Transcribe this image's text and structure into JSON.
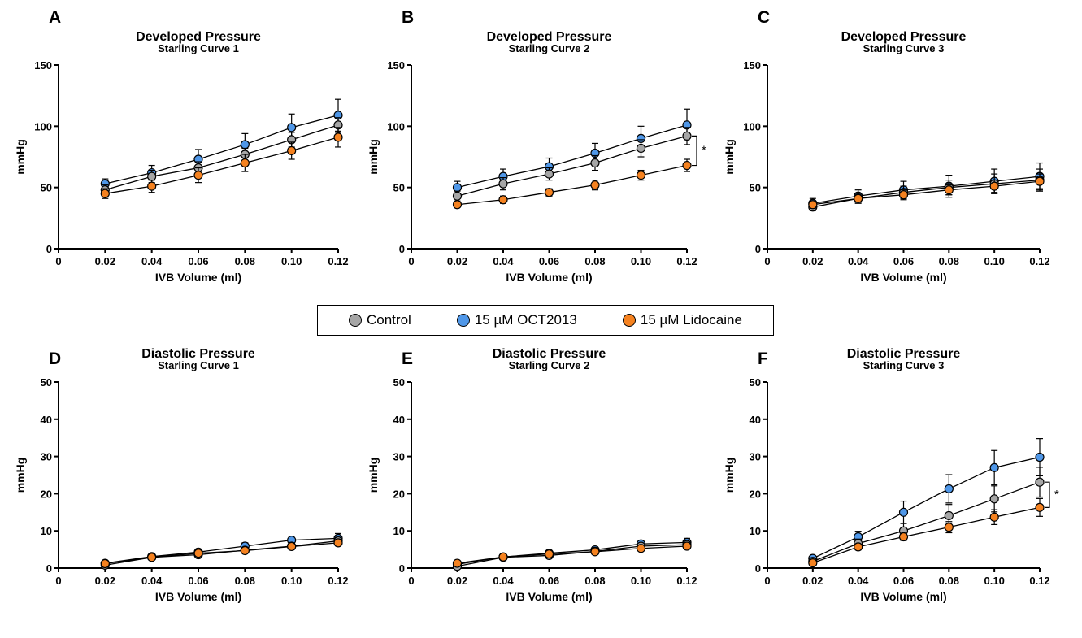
{
  "legend": {
    "series": [
      {
        "name": "Control",
        "color": "#a6a6a6"
      },
      {
        "name": "15 µM OCT2013",
        "color": "#4f97e8"
      },
      {
        "name": "15 µM Lidocaine",
        "color": "#f58220"
      }
    ]
  },
  "chart_data": [
    {
      "panel": "A",
      "type": "line",
      "title": "Developed Pressure",
      "subtitle": "Starling Curve 1",
      "xlabel": "IVB Volume (ml)",
      "ylabel": "mmHg",
      "xlim": [
        0,
        0.12
      ],
      "ylim": [
        0,
        150
      ],
      "xticks": [
        "0",
        "0.02",
        "0.04",
        "0.06",
        "0.08",
        "0.10",
        "0.12"
      ],
      "yticks": [
        "0",
        "50",
        "100",
        "150"
      ],
      "x": [
        0.02,
        0.04,
        0.06,
        0.08,
        0.1,
        0.12
      ],
      "significance": "",
      "series": [
        {
          "name": "Control",
          "values": [
            48,
            59,
            66,
            77,
            89,
            101
          ],
          "error": [
            4,
            5,
            5,
            5,
            6,
            6
          ]
        },
        {
          "name": "15 µM OCT2013",
          "values": [
            53,
            62,
            73,
            85,
            99,
            109
          ],
          "error": [
            4,
            6,
            8,
            9,
            11,
            13
          ]
        },
        {
          "name": "15 µM Lidocaine",
          "values": [
            45,
            51,
            60,
            70,
            80,
            91
          ],
          "error": [
            4,
            5,
            6,
            7,
            7,
            8
          ]
        }
      ]
    },
    {
      "panel": "B",
      "type": "line",
      "title": "Developed Pressure",
      "subtitle": "Starling Curve 2",
      "xlabel": "IVB Volume (ml)",
      "ylabel": "mmHg",
      "xlim": [
        0,
        0.12
      ],
      "ylim": [
        0,
        150
      ],
      "xticks": [
        "0",
        "0.02",
        "0.04",
        "0.06",
        "0.08",
        "0.10",
        "0.12"
      ],
      "yticks": [
        "0",
        "50",
        "100",
        "150"
      ],
      "x": [
        0.02,
        0.04,
        0.06,
        0.08,
        0.1,
        0.12
      ],
      "significance": "*",
      "series": [
        {
          "name": "Control",
          "values": [
            43,
            53,
            61,
            70,
            82,
            92
          ],
          "error": [
            4,
            5,
            5,
            6,
            7,
            7
          ]
        },
        {
          "name": "15 µM OCT2013",
          "values": [
            50,
            59,
            67,
            78,
            90,
            101
          ],
          "error": [
            5,
            6,
            7,
            8,
            10,
            13
          ]
        },
        {
          "name": "15 µM Lidocaine",
          "values": [
            36,
            40,
            46,
            52,
            60,
            68
          ],
          "error": [
            2,
            3,
            3,
            4,
            4,
            5
          ]
        }
      ]
    },
    {
      "panel": "C",
      "type": "line",
      "title": "Developed Pressure",
      "subtitle": "Starling Curve 3",
      "xlabel": "IVB Volume (ml)",
      "ylabel": "mmHg",
      "xlim": [
        0,
        0.12
      ],
      "ylim": [
        0,
        150
      ],
      "xticks": [
        "0",
        "0.02",
        "0.04",
        "0.06",
        "0.08",
        "0.10",
        "0.12"
      ],
      "yticks": [
        "0",
        "50",
        "100",
        "150"
      ],
      "x": [
        0.02,
        0.04,
        0.06,
        0.08,
        0.1,
        0.12
      ],
      "significance": "",
      "series": [
        {
          "name": "Control",
          "values": [
            34,
            41,
            46,
            50,
            53,
            56
          ],
          "error": [
            3,
            4,
            5,
            6,
            8,
            9
          ]
        },
        {
          "name": "15 µM OCT2013",
          "values": [
            37,
            43,
            48,
            51,
            55,
            59
          ],
          "error": [
            4,
            5,
            7,
            9,
            10,
            11
          ]
        },
        {
          "name": "15 µM Lidocaine",
          "values": [
            36,
            41,
            44,
            48,
            51,
            55
          ],
          "error": [
            3,
            3,
            4,
            4,
            5,
            6
          ]
        }
      ]
    },
    {
      "panel": "D",
      "type": "line",
      "title": "Diastolic Pressure",
      "subtitle": "Starling Curve 1",
      "xlabel": "IVB Volume (ml)",
      "ylabel": "mmHg",
      "xlim": [
        0,
        0.12
      ],
      "ylim": [
        0,
        50
      ],
      "xticks": [
        "0",
        "0.02",
        "0.04",
        "0.06",
        "0.08",
        "0.10",
        "0.12"
      ],
      "yticks": [
        "0",
        "10",
        "20",
        "30",
        "40",
        "50"
      ],
      "x": [
        0.02,
        0.04,
        0.06,
        0.08,
        0.1,
        0.12
      ],
      "significance": "",
      "series": [
        {
          "name": "Control",
          "values": [
            0.8,
            2.9,
            3.6,
            4.8,
            5.9,
            7.3
          ],
          "error": [
            0.4,
            0.5,
            0.6,
            0.7,
            0.9,
            1.0
          ]
        },
        {
          "name": "15 µM OCT2013",
          "values": [
            1.3,
            3.1,
            4.3,
            5.9,
            7.5,
            8.0
          ],
          "error": [
            0.4,
            0.5,
            0.7,
            0.9,
            1.1,
            1.3
          ]
        },
        {
          "name": "15 µM Lidocaine",
          "values": [
            1.2,
            2.9,
            4.0,
            4.7,
            5.8,
            6.8
          ],
          "error": [
            0.3,
            0.4,
            0.5,
            0.6,
            0.7,
            0.8
          ]
        }
      ]
    },
    {
      "panel": "E",
      "type": "line",
      "title": "Diastolic Pressure",
      "subtitle": "Starling Curve 2",
      "xlabel": "IVB Volume (ml)",
      "ylabel": "mmHg",
      "xlim": [
        0,
        0.12
      ],
      "ylim": [
        0,
        50
      ],
      "xticks": [
        "0",
        "0.02",
        "0.04",
        "0.06",
        "0.08",
        "0.10",
        "0.12"
      ],
      "yticks": [
        "0",
        "10",
        "20",
        "30",
        "40",
        "50"
      ],
      "x": [
        0.02,
        0.04,
        0.06,
        0.08,
        0.1,
        0.12
      ],
      "significance": "",
      "series": [
        {
          "name": "Control",
          "values": [
            0.5,
            2.9,
            3.4,
            4.5,
            5.9,
            6.3
          ],
          "error": [
            0.3,
            0.4,
            0.5,
            0.6,
            0.7,
            0.8
          ]
        },
        {
          "name": "15 µM OCT2013",
          "values": [
            1.0,
            3.0,
            4.0,
            4.9,
            6.5,
            6.9
          ],
          "error": [
            0.4,
            0.5,
            0.6,
            0.8,
            1.0,
            1.1
          ]
        },
        {
          "name": "15 µM Lidocaine",
          "values": [
            1.3,
            3.0,
            3.8,
            4.4,
            5.3,
            5.9
          ],
          "error": [
            0.3,
            0.4,
            0.5,
            0.6,
            0.7,
            0.8
          ]
        }
      ]
    },
    {
      "panel": "F",
      "type": "line",
      "title": "Diastolic Pressure",
      "subtitle": "Starling Curve 3",
      "xlabel": "IVB Volume (ml)",
      "ylabel": "mmHg",
      "xlim": [
        0,
        0.12
      ],
      "ylim": [
        0,
        50
      ],
      "xticks": [
        "0",
        "0.02",
        "0.04",
        "0.06",
        "0.08",
        "0.10",
        "0.12"
      ],
      "yticks": [
        "0",
        "10",
        "20",
        "30",
        "40",
        "50"
      ],
      "x": [
        0.02,
        0.04,
        0.06,
        0.08,
        0.1,
        0.12
      ],
      "significance": "*",
      "series": [
        {
          "name": "Control",
          "values": [
            1.8,
            6.6,
            10.0,
            14.1,
            18.6,
            23.1
          ],
          "error": [
            0.5,
            1.2,
            2.0,
            3.0,
            3.5,
            4.0
          ]
        },
        {
          "name": "15 µM OCT2013",
          "values": [
            2.6,
            8.4,
            15.0,
            21.3,
            27.0,
            29.8
          ],
          "error": [
            0.6,
            1.5,
            3.0,
            3.8,
            4.6,
            5.0
          ]
        },
        {
          "name": "15 µM Lidocaine",
          "values": [
            1.4,
            5.7,
            8.4,
            11.0,
            13.7,
            16.3
          ],
          "error": [
            0.3,
            0.8,
            1.0,
            1.5,
            2.0,
            2.4
          ]
        }
      ]
    }
  ]
}
